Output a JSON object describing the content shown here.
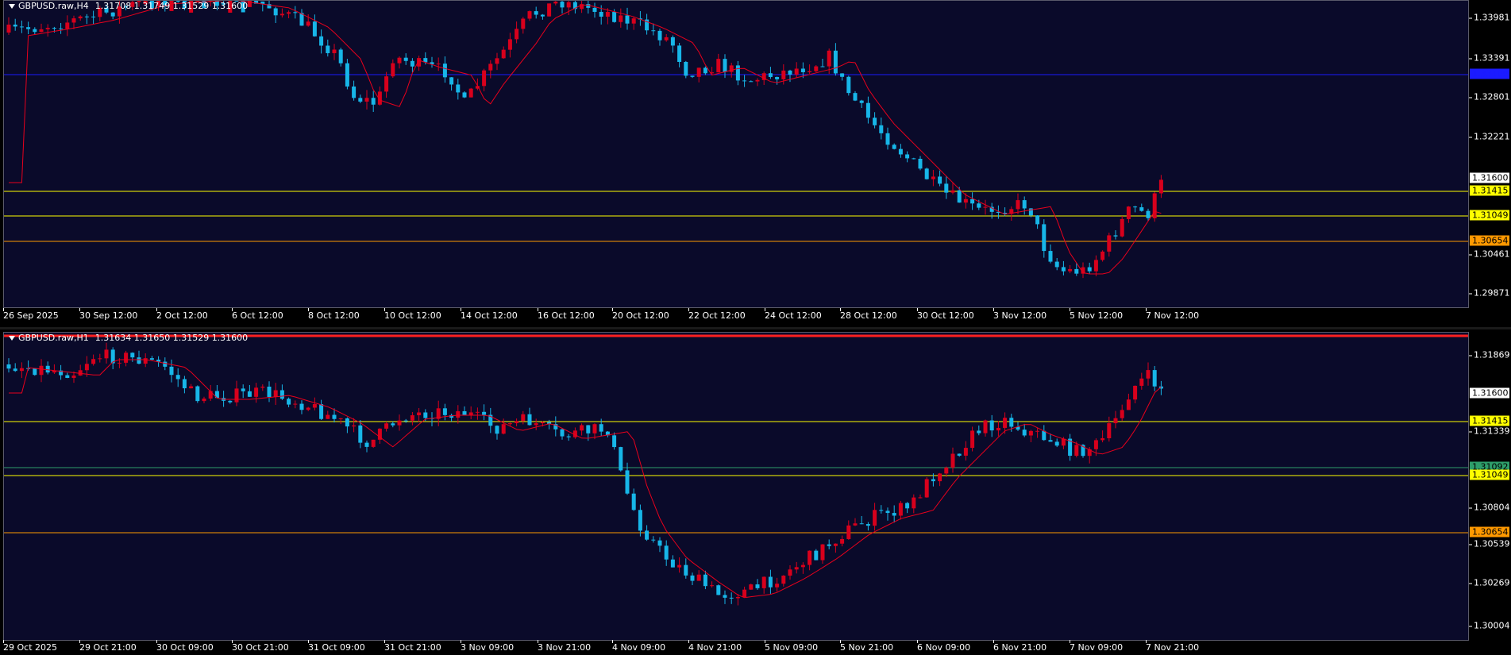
{
  "colors": {
    "background": "#0a0a2a",
    "bull": "#d8001c",
    "bear": "#17b6e8",
    "ma": "#e8001c",
    "yellow_line": "#ffff00",
    "orange_line": "#ff9900",
    "blue_line": "#1b1bff",
    "green_line": "#2e9e6a"
  },
  "panels": [
    {
      "symbol": "GBPUSD.raw,H4",
      "ohlc": "1.31708 1.31749 1.31529 1.31600",
      "y_ticks": [
        "1.33981",
        "1.33391",
        "1.32801",
        "1.32221",
        "1.30461",
        "1.29871"
      ],
      "x_labels": [
        "26 Sep 2025",
        "30 Sep 12:00",
        "2 Oct 12:00",
        "6 Oct 12:00",
        "8 Oct 12:00",
        "10 Oct 12:00",
        "14 Oct 12:00",
        "16 Oct 12:00",
        "20 Oct 12:00",
        "22 Oct 12:00",
        "24 Oct 12:00",
        "28 Oct 12:00",
        "30 Oct 12:00",
        "3 Nov 12:00",
        "5 Nov 12:00",
        "7 Nov 12:00"
      ],
      "price_tags": [
        {
          "label": "1.33100",
          "kind": "blue"
        },
        {
          "label": "1.31600",
          "kind": "current"
        },
        {
          "label": "1.31415",
          "kind": "yellow"
        },
        {
          "label": "1.31049",
          "kind": "yellow"
        },
        {
          "label": "1.30654",
          "kind": "orange"
        }
      ]
    },
    {
      "symbol": "GBPUSD.raw,H1",
      "ohlc": "1.31634 1.31650 1.31529 1.31600",
      "y_ticks": [
        "1.31869",
        "1.31339",
        "1.30804",
        "1.30539",
        "1.30269",
        "1.30004"
      ],
      "x_labels": [
        "29 Oct 2025",
        "29 Oct 21:00",
        "30 Oct 09:00",
        "30 Oct 21:00",
        "31 Oct 09:00",
        "31 Oct 21:00",
        "3 Nov 09:00",
        "3 Nov 21:00",
        "4 Nov 09:00",
        "4 Nov 21:00",
        "5 Nov 09:00",
        "5 Nov 21:00",
        "6 Nov 09:00",
        "6 Nov 21:00",
        "7 Nov 09:00",
        "7 Nov 21:00"
      ],
      "price_tags": [
        {
          "label": "1.31600",
          "kind": "current"
        },
        {
          "label": "1.31415",
          "kind": "yellow"
        },
        {
          "label": "1.31092",
          "kind": "green"
        },
        {
          "label": "1.31049",
          "kind": "yellow"
        },
        {
          "label": "1.30654",
          "kind": "orange"
        }
      ]
    }
  ]
}
